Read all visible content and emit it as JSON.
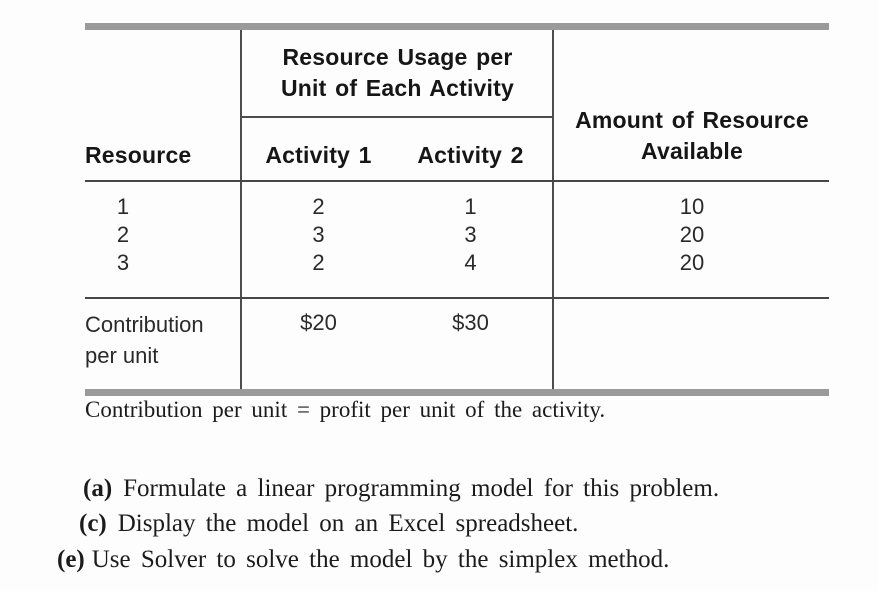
{
  "table": {
    "span_header": {
      "line1": "Resource Usage per",
      "line2": "Unit of Each Activity"
    },
    "col_headers": {
      "resource": "Resource",
      "activity1": "Activity 1",
      "activity2": "Activity 2",
      "amount_line1": "Amount of Resource",
      "amount_line2": "Available"
    },
    "rows": [
      {
        "resource": "1",
        "activity1": "2",
        "activity2": "1",
        "amount": "10"
      },
      {
        "resource": "2",
        "activity1": "3",
        "activity2": "3",
        "amount": "20"
      },
      {
        "resource": "3",
        "activity1": "2",
        "activity2": "4",
        "amount": "20"
      }
    ],
    "footer_row": {
      "label_line1": "Contribution",
      "label_line2": "per unit",
      "activity1": "$20",
      "activity2": "$30"
    }
  },
  "footnote": "Contribution per unit = profit per unit of the activity.",
  "questions": [
    {
      "label": "(a)",
      "text": "Formulate a linear programming model for this problem."
    },
    {
      "label": "(c)",
      "text": "Display the model on an Excel spreadsheet."
    },
    {
      "label": "(e)",
      "text": "Use Solver to solve the model by the simplex method."
    }
  ],
  "colors": {
    "thick_bar": "#9a9a9a",
    "rule_line": "#4d4d4d",
    "text": "#1b1b1b"
  }
}
